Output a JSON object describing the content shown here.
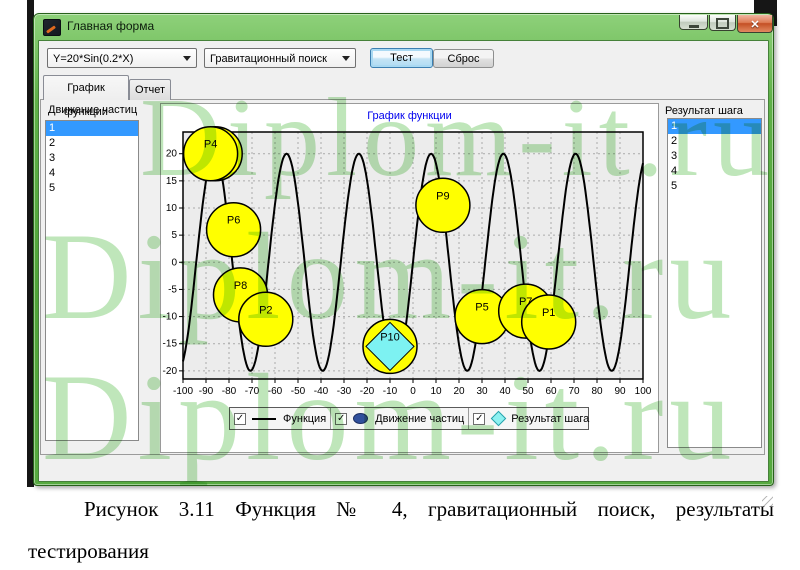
{
  "window": {
    "title": "Главная форма",
    "controls": {
      "minimize": "minimize",
      "maximize": "maximize",
      "close": "close"
    }
  },
  "toolbar": {
    "function_combo_value": "Y=20*Sin(0.2*X)",
    "algorithm_combo_value": "Гравитационный поиск",
    "test_button": "Тест",
    "reset_button": "Сброс"
  },
  "tabs": [
    {
      "label": "График функции",
      "active": true
    },
    {
      "label": "Отчет",
      "active": false
    }
  ],
  "left_panel": {
    "label": "Движение частиц",
    "items": [
      "1",
      "2",
      "3",
      "4",
      "5"
    ],
    "selected_index": 0
  },
  "right_panel": {
    "label": "Результат шага",
    "items": [
      "1",
      "2",
      "3",
      "4",
      "5"
    ],
    "selected_index": 0
  },
  "chart_data": {
    "type": "line",
    "title": "График функции",
    "function_label": "Y=20*Sin(0.2*X)",
    "xlim": [
      -100,
      100
    ],
    "draw_ylim": [
      -21.5,
      24
    ],
    "x_tick_step": 10,
    "y_ticks": [
      -20,
      -15,
      -10,
      -5,
      0,
      5,
      10,
      15,
      20
    ],
    "grid": true,
    "curve_color": "#000000",
    "plot_bg": "#ececec",
    "particle_fill": "#ffff00",
    "particle_stroke": "#000000",
    "result_marker_fill": "#7df2f2",
    "particle_radius_px": 27,
    "particles": [
      {
        "label": "P3",
        "x": -86,
        "y": 20
      },
      {
        "label": "P4",
        "x": -88,
        "y": 20
      },
      {
        "label": "P6",
        "x": -78,
        "y": 6
      },
      {
        "label": "P8",
        "x": -75,
        "y": -6
      },
      {
        "label": "P2",
        "x": -64,
        "y": -10.5
      },
      {
        "label": "P10",
        "x": -10,
        "y": -15.5,
        "result": true
      },
      {
        "label": "P9",
        "x": 13,
        "y": 10.5
      },
      {
        "label": "P5",
        "x": 30,
        "y": -10
      },
      {
        "label": "P7",
        "x": 49,
        "y": -9
      },
      {
        "label": "P1",
        "x": 59,
        "y": -11
      }
    ],
    "legend": [
      {
        "symbol": "line",
        "label": "Функция",
        "checked": true
      },
      {
        "symbol": "ellipse",
        "label": "Движение частиц",
        "checked": true
      },
      {
        "symbol": "diamond",
        "label": "Результат шага",
        "checked": true
      }
    ]
  },
  "watermark": {
    "text": "Diplom-it.ru",
    "color": "#bfe6ba"
  },
  "caption": {
    "text": "Рисунок 3.11 Функция № 4, гравитационный поиск, результаты тестирования"
  }
}
